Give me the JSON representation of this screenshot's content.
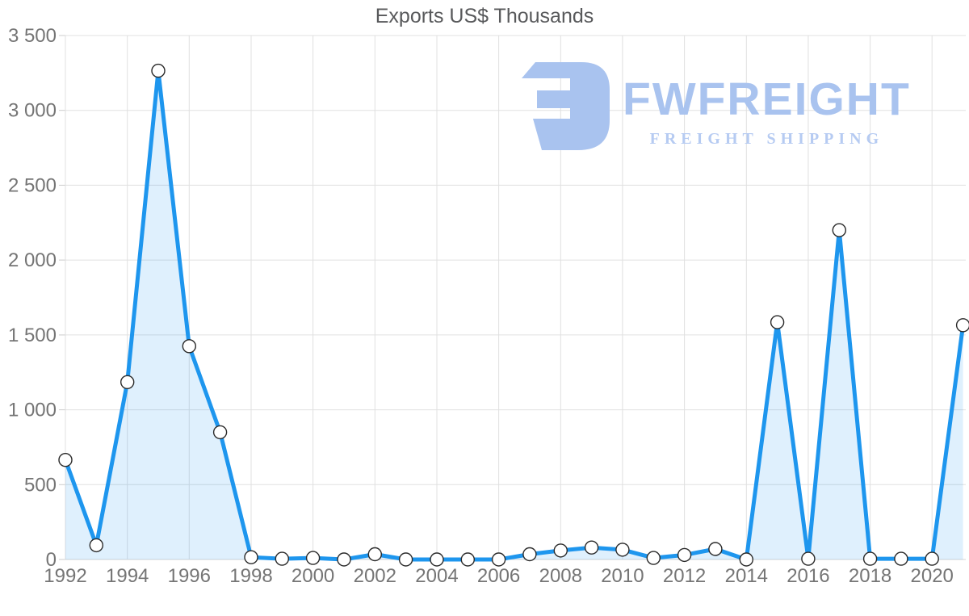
{
  "page": {
    "title": "Exports US$ Thousands"
  },
  "watermark": {
    "brand": "FWFREIGHT",
    "tagline": "FREIGHT SHIPPING",
    "logo_icon": "fwfreight-mark-icon",
    "color": "#a9c3ef",
    "tagline_color": "#b6cbf2"
  },
  "chart_data": {
    "type": "area",
    "title": "Exports US$ Thousands",
    "xlabel": "",
    "ylabel": "",
    "legend": "none",
    "grid": true,
    "x": [
      1992,
      1993,
      1994,
      1995,
      1996,
      1997,
      1998,
      1999,
      2000,
      2001,
      2002,
      2003,
      2004,
      2005,
      2006,
      2007,
      2008,
      2009,
      2010,
      2011,
      2012,
      2013,
      2014,
      2015,
      2016,
      2017,
      2018,
      2019,
      2020,
      2021
    ],
    "series": [
      {
        "name": "Exports US$ Thousands",
        "values": [
          665,
          95,
          1185,
          3265,
          1425,
          850,
          15,
          5,
          10,
          0,
          35,
          0,
          0,
          0,
          0,
          35,
          60,
          80,
          65,
          10,
          30,
          70,
          0,
          1585,
          5,
          2200,
          5,
          5,
          5,
          1565
        ]
      }
    ],
    "x_tick_labels": [
      "1992",
      "1994",
      "1996",
      "1998",
      "2000",
      "2002",
      "2004",
      "2006",
      "2008",
      "2010",
      "2012",
      "2014",
      "2016",
      "2018",
      "2020"
    ],
    "y_ticks": [
      0,
      500,
      1000,
      1500,
      2000,
      2500,
      3000,
      3500
    ],
    "y_tick_labels": [
      "0",
      "500",
      "1 000",
      "1 500",
      "2 000",
      "2 500",
      "3 000",
      "3 500"
    ],
    "ylim": [
      0,
      3500
    ],
    "line_color": "#1e96ee",
    "fill_color": "rgba(30,150,238,0.14)",
    "grid_color": "#e0e0e0",
    "axis_line_color": "#d6d6d6",
    "tick_color": "#cccccc",
    "tick_label_color": "#757575",
    "title_color": "#58595b",
    "marker": {
      "fill": "#ffffff",
      "stroke": "#2a2a2a",
      "radius": 8
    }
  }
}
